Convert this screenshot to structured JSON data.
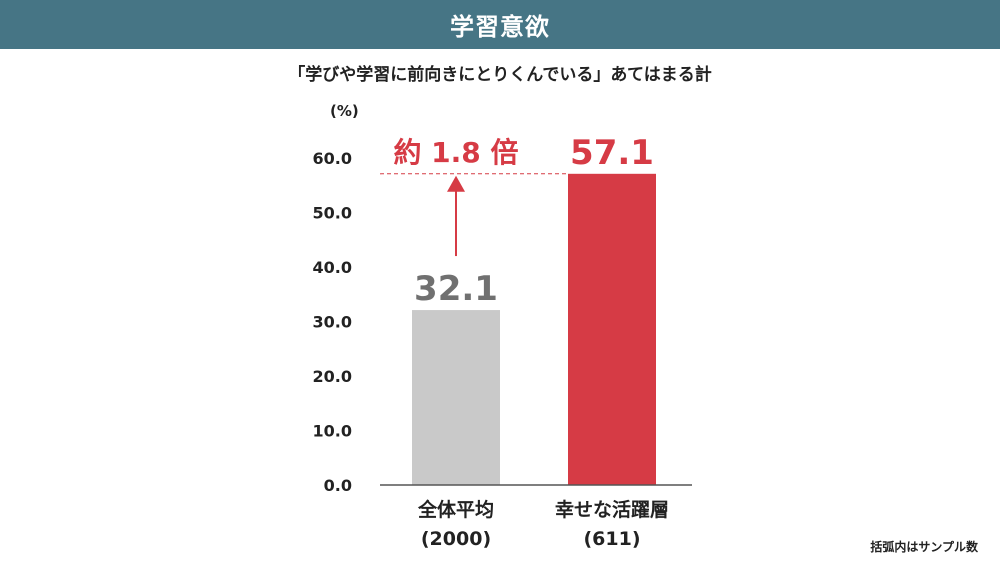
{
  "header": {
    "title": "学習意欲"
  },
  "subtitle": "「学びや学習に前向きにとりくんでいる」あてはまる計",
  "unit_label": "(%)",
  "footnote": "括弧内はサンプル数",
  "annotation": {
    "label": "約 1.8 倍",
    "color": "#d63b45"
  },
  "colors": {
    "bar_total": "#c9c9c9",
    "bar_happy": "#d63b45",
    "label_total": "#707070",
    "label_happy": "#d63b45",
    "axis": "#555555"
  },
  "chart_data": {
    "type": "bar",
    "title": "「学びや学習に前向きにとりくんでいる」あてはまる計",
    "ylabel": "(%)",
    "ylim": [
      0,
      60
    ],
    "yticks": [
      "0.0",
      "10.0",
      "20.0",
      "30.0",
      "40.0",
      "50.0",
      "60.0"
    ],
    "categories": [
      {
        "name": "全体平均",
        "sample": "(2000)"
      },
      {
        "name": "幸せな活躍層",
        "sample": "(611)"
      }
    ],
    "values": [
      32.1,
      57.1
    ],
    "value_labels": [
      "32.1",
      "57.1"
    ],
    "grid": false
  }
}
